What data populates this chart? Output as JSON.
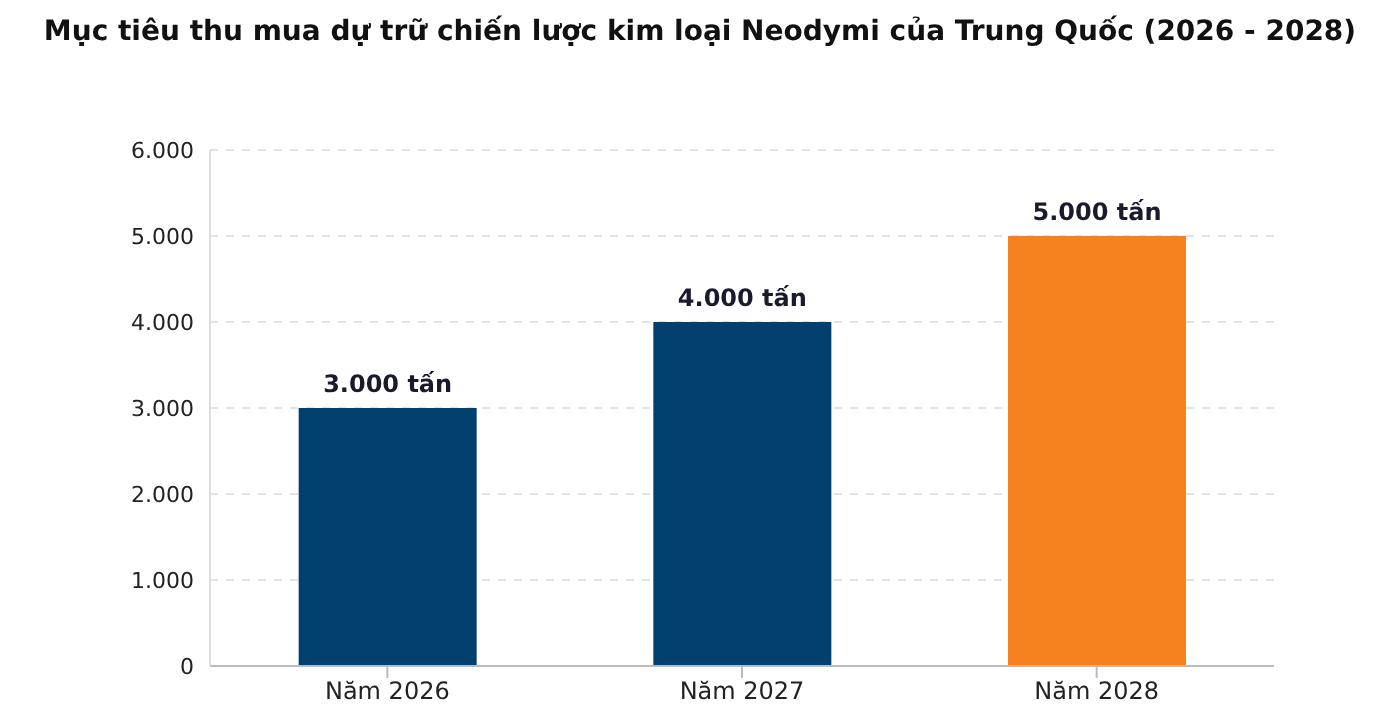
{
  "chart_data": {
    "type": "bar",
    "title": "Mục tiêu thu mua dự trữ chiến lược kim loại Neodymi của Trung Quốc (2026 - 2028)",
    "categories": [
      "Năm 2026",
      "Năm 2027",
      "Năm 2028"
    ],
    "values": [
      3000,
      4000,
      5000
    ],
    "colors": [
      "#003f6e",
      "#003f6e",
      "#f5821f"
    ],
    "value_labels": [
      "3.000 tấn",
      "4.000 tấn",
      "5.000 tấn"
    ],
    "ylim": [
      0,
      6000
    ],
    "yticks": [
      0,
      {
        "value": 1000,
        "label": "1.000"
      },
      {
        "value": 2000,
        "label": "2.000"
      },
      {
        "value": 3000,
        "label": "3.000"
      },
      {
        "value": 4000,
        "label": "4.000"
      },
      {
        "value": 5000,
        "label": "5.000"
      },
      {
        "value": 6000,
        "label": "6.000"
      }
    ],
    "grid": "y"
  }
}
